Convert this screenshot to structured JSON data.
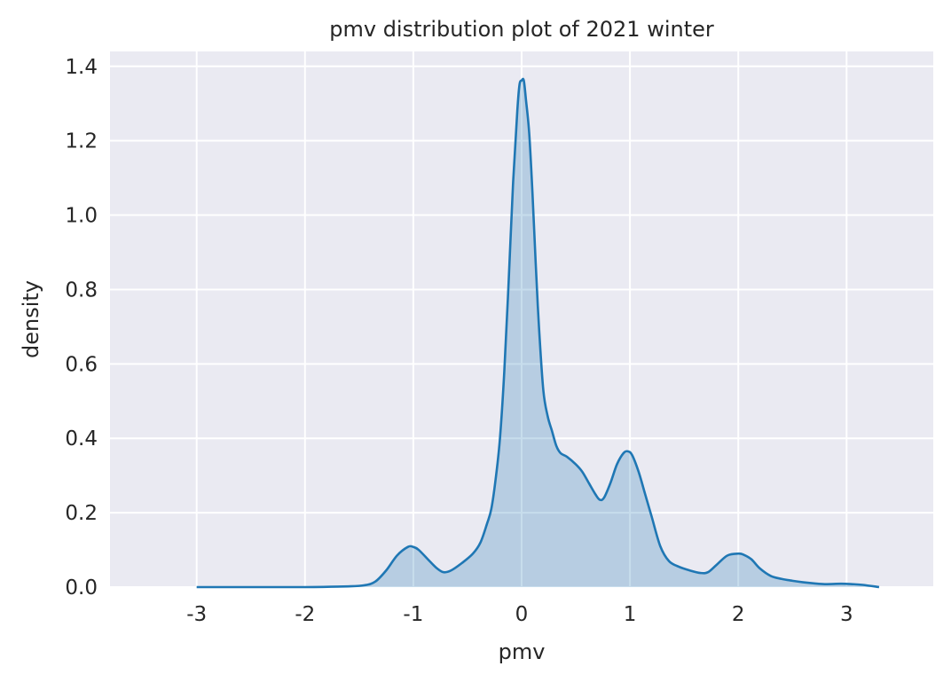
{
  "chart_data": {
    "type": "area",
    "title": "pmv distribution plot of 2021 winter",
    "xlabel": "pmv",
    "ylabel": "density",
    "xlim": [
      -3.8,
      3.8
    ],
    "ylim": [
      0,
      1.44
    ],
    "xticks": [
      -3,
      -2,
      -1,
      0,
      1,
      2,
      3
    ],
    "xtick_labels": [
      "-3",
      "-2",
      "-1",
      "0",
      "1",
      "2",
      "3"
    ],
    "yticks": [
      0.0,
      0.2,
      0.4,
      0.6,
      0.8,
      1.0,
      1.2,
      1.4
    ],
    "ytick_labels": [
      "0.0",
      "0.2",
      "0.4",
      "0.6",
      "0.8",
      "1.0",
      "1.2",
      "1.4"
    ],
    "grid": true,
    "colors": {
      "line": "#1f77b4",
      "fill": "#1f77b4",
      "background": "#eaeaf2",
      "grid": "#ffffff"
    },
    "series": [
      {
        "x": [
          -3.0,
          -2.5,
          -2.0,
          -1.6,
          -1.45,
          -1.35,
          -1.25,
          -1.15,
          -1.05,
          -1.0,
          -0.95,
          -0.85,
          -0.78,
          -0.72,
          -0.65,
          -0.55,
          -0.45,
          -0.38,
          -0.32,
          -0.28,
          -0.24,
          -0.2,
          -0.16,
          -0.12,
          -0.08,
          -0.04,
          -0.02,
          0.0,
          0.02,
          0.04,
          0.07,
          0.1,
          0.13,
          0.16,
          0.2,
          0.24,
          0.28,
          0.32,
          0.36,
          0.42,
          0.5,
          0.56,
          0.62,
          0.68,
          0.72,
          0.76,
          0.82,
          0.88,
          0.94,
          0.98,
          1.02,
          1.08,
          1.14,
          1.2,
          1.28,
          1.36,
          1.45,
          1.55,
          1.65,
          1.72,
          1.8,
          1.9,
          2.0,
          2.05,
          2.12,
          2.2,
          2.3,
          2.4,
          2.5,
          2.6,
          2.7,
          2.8,
          2.95,
          3.05,
          3.15,
          3.3
        ],
        "y": [
          0.0,
          0.0,
          0.0,
          0.002,
          0.005,
          0.015,
          0.045,
          0.085,
          0.108,
          0.108,
          0.1,
          0.07,
          0.05,
          0.04,
          0.045,
          0.065,
          0.09,
          0.12,
          0.17,
          0.21,
          0.29,
          0.4,
          0.58,
          0.82,
          1.08,
          1.28,
          1.35,
          1.362,
          1.362,
          1.31,
          1.22,
          1.06,
          0.87,
          0.7,
          0.53,
          0.46,
          0.42,
          0.38,
          0.36,
          0.35,
          0.33,
          0.31,
          0.28,
          0.25,
          0.235,
          0.24,
          0.28,
          0.33,
          0.36,
          0.365,
          0.355,
          0.31,
          0.25,
          0.19,
          0.11,
          0.07,
          0.055,
          0.045,
          0.038,
          0.04,
          0.06,
          0.085,
          0.09,
          0.087,
          0.075,
          0.05,
          0.03,
          0.022,
          0.017,
          0.013,
          0.01,
          0.008,
          0.009,
          0.008,
          0.006,
          0.0
        ]
      }
    ]
  }
}
